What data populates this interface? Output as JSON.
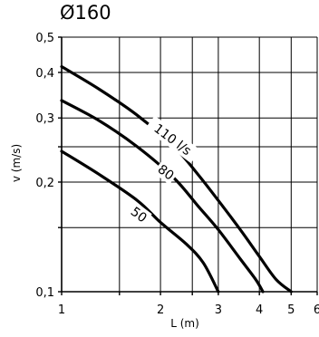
{
  "chart_data": {
    "type": "line",
    "title": "Ø160",
    "xlabel": "L (m)",
    "ylabel": "v (m/s)",
    "xscale": "log",
    "yscale": "log",
    "xlim": [
      1,
      6
    ],
    "ylim": [
      0.1,
      0.5
    ],
    "grid": true,
    "x_gridlines": [
      1,
      1.5,
      2,
      2.5,
      3,
      4,
      5,
      6
    ],
    "y_gridlines": [
      0.1,
      0.15,
      0.2,
      0.25,
      0.3,
      0.4,
      0.5
    ],
    "x_ticks": [
      "1",
      "2",
      "3",
      "4",
      "5",
      "6"
    ],
    "y_ticks": [
      "0,1",
      "0,2",
      "0,3",
      "0,4",
      "0,5"
    ],
    "series": [
      {
        "name": "110 l/s",
        "points": [
          [
            1.0,
            0.415
          ],
          [
            1.3,
            0.36
          ],
          [
            1.7,
            0.305
          ],
          [
            2.2,
            0.25
          ],
          [
            2.6,
            0.21
          ],
          [
            3.0,
            0.178
          ],
          [
            3.5,
            0.148
          ],
          [
            4.0,
            0.125
          ],
          [
            4.5,
            0.108
          ],
          [
            5.0,
            0.1
          ]
        ]
      },
      {
        "name": "80",
        "points": [
          [
            1.0,
            0.335
          ],
          [
            1.3,
            0.295
          ],
          [
            1.7,
            0.25
          ],
          [
            2.2,
            0.205
          ],
          [
            2.6,
            0.172
          ],
          [
            3.0,
            0.148
          ],
          [
            3.5,
            0.123
          ],
          [
            3.9,
            0.108
          ],
          [
            4.1,
            0.1
          ]
        ]
      },
      {
        "name": "50",
        "points": [
          [
            1.0,
            0.243
          ],
          [
            1.3,
            0.21
          ],
          [
            1.7,
            0.178
          ],
          [
            2.0,
            0.155
          ],
          [
            2.4,
            0.135
          ],
          [
            2.7,
            0.12
          ],
          [
            3.0,
            0.1
          ]
        ]
      }
    ]
  }
}
